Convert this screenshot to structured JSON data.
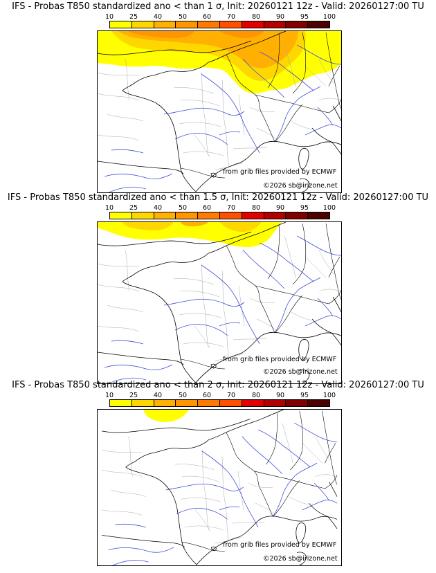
{
  "scale": {
    "labels": [
      "10",
      "25",
      "40",
      "50",
      "60",
      "70",
      "80",
      "90",
      "95",
      "100"
    ],
    "colors": [
      "#ffff00",
      "#ffd700",
      "#ffb000",
      "#ff9600",
      "#ff7a00",
      "#ff5000",
      "#e00000",
      "#b00000",
      "#800000",
      "#4a0000"
    ]
  },
  "credits": {
    "source": "from grib files provided by ECMWF",
    "copyright": "©2026 sb@irizone.net"
  },
  "panels": [
    {
      "title": "IFS - Probas T850  standardized ano < than 1 σ, Init: 20260121 12z - Valid: 20260127:00 TU"
    },
    {
      "title": "IFS - Probas T850  standardized ano < than 1.5 σ, Init: 20260121 12z - Valid: 20260127:00 TU"
    },
    {
      "title": "IFS - Probas T850  standardized ano < than 2 σ, Init: 20260121 12z - Valid: 20260127:00 TU"
    }
  ]
}
